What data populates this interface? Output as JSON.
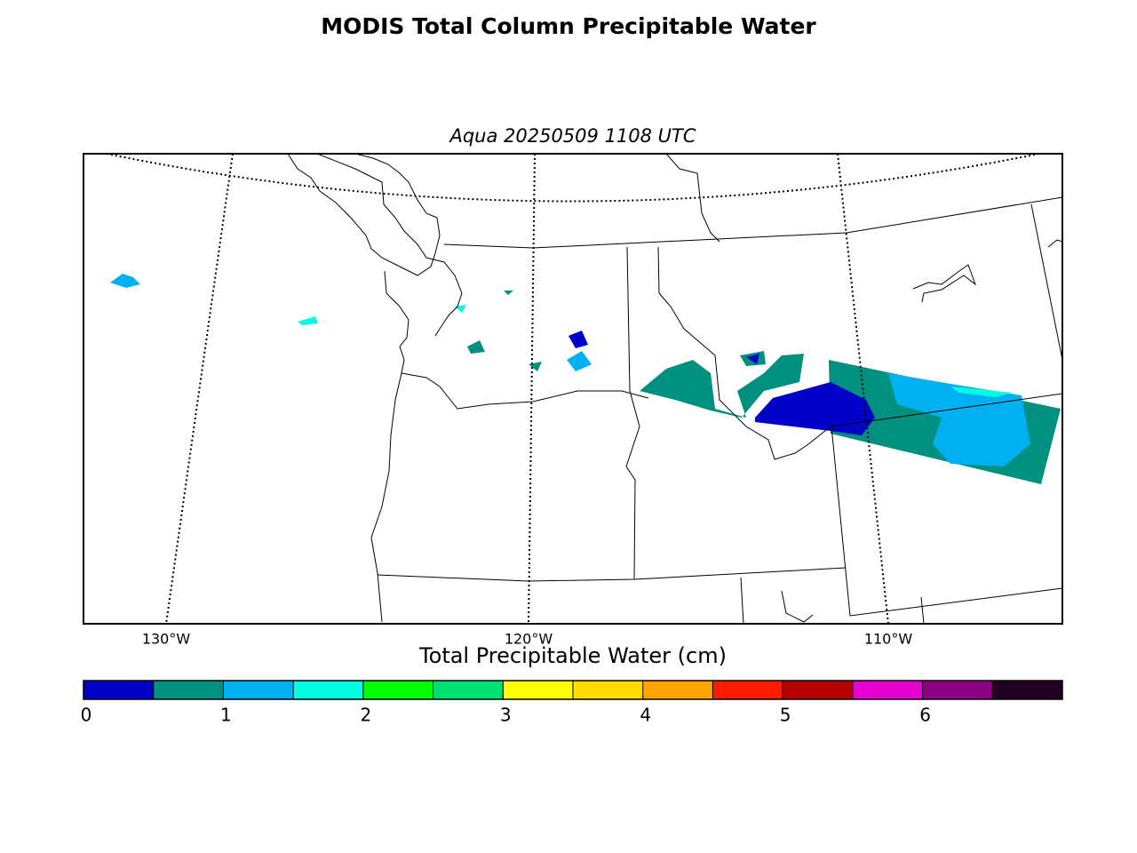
{
  "title": "MODIS Total Column Precipitable Water",
  "subtitle": "Aqua 20250509 1108 UTC",
  "map": {
    "lon_labels": [
      "130°W",
      "120°W",
      "110°W"
    ]
  },
  "colorbar": {
    "label": "Total Precipitable Water (cm)",
    "lim": [
      0,
      7
    ],
    "ticks": [
      0,
      1,
      2,
      3,
      4,
      5,
      6
    ],
    "colors": [
      "#0000c8",
      "#00907f",
      "#00b0f0",
      "#00ffe0",
      "#00ff00",
      "#00e070",
      "#ffff00",
      "#ffdc00",
      "#ffa500",
      "#ff1a00",
      "#b40000",
      "#e600d2",
      "#8c0082",
      "#200020"
    ]
  }
}
